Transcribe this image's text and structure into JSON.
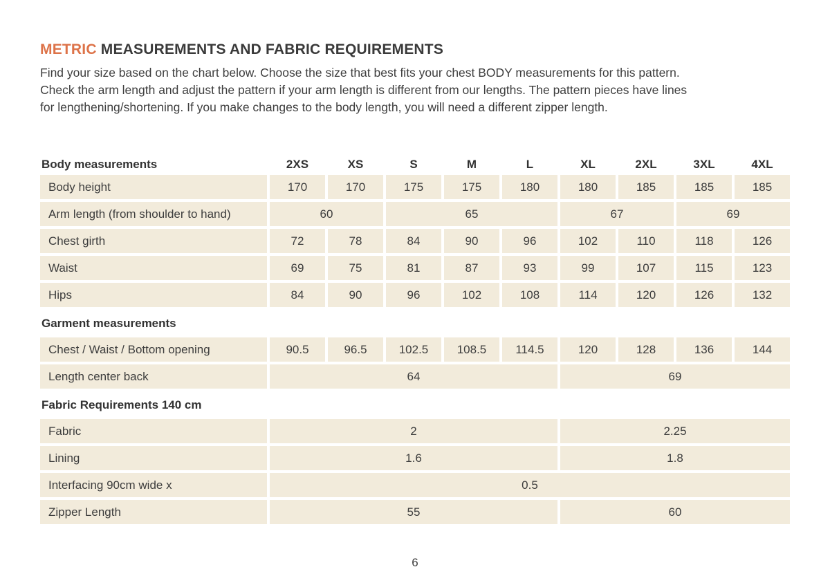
{
  "title": {
    "highlight": "METRIC",
    "rest": "MEASUREMENTS AND FABRIC REQUIREMENTS"
  },
  "intro_lines": [
    "Find your size based on the chart below. Choose the size that best fits your chest BODY measurements for this pattern.",
    "Check the arm length and adjust the pattern if your arm length is different from our lengths. The pattern pieces have lines",
    "for lengthening/shortening. If you make changes to the body length, you will need a different zipper length."
  ],
  "colors": {
    "accent_orange": "#dd7349",
    "cell_background": "#f2ebdb",
    "text": "#3d3d3d"
  },
  "table": {
    "header": {
      "label": "Body measurements",
      "sizes": [
        "2XS",
        "XS",
        "S",
        "M",
        "L",
        "XL",
        "2XL",
        "3XL",
        "4XL"
      ]
    },
    "section_headers": {
      "garment": "Garment measurements",
      "fabric_requirements": "Fabric Requirements 140 cm"
    },
    "rows": {
      "body_height": {
        "label": "Body height",
        "values": [
          "170",
          "170",
          "175",
          "175",
          "180",
          "180",
          "185",
          "185",
          "185"
        ]
      },
      "arm_length": {
        "label": "Arm length (from shoulder to hand)",
        "values": [
          "60",
          "65",
          "67",
          "69"
        ]
      },
      "chest_girth": {
        "label": "Chest girth",
        "values": [
          "72",
          "78",
          "84",
          "90",
          "96",
          "102",
          "110",
          "118",
          "126"
        ]
      },
      "waist": {
        "label": "Waist",
        "values": [
          "69",
          "75",
          "81",
          "87",
          "93",
          "99",
          "107",
          "115",
          "123"
        ]
      },
      "hips": {
        "label": "Hips",
        "values": [
          "84",
          "90",
          "96",
          "102",
          "108",
          "114",
          "120",
          "126",
          "132"
        ]
      },
      "chest_waist_bottom": {
        "label": "Chest / Waist / Bottom opening",
        "values": [
          "90.5",
          "96.5",
          "102.5",
          "108.5",
          "114.5",
          "120",
          "128",
          "136",
          "144"
        ]
      },
      "length_center_back": {
        "label": "Length center back",
        "values": [
          "64",
          "69"
        ]
      },
      "fabric": {
        "label": "Fabric",
        "values": [
          "2",
          "2.25"
        ]
      },
      "lining": {
        "label": "Lining",
        "values": [
          "1.6",
          "1.8"
        ]
      },
      "interfacing": {
        "label": "Interfacing 90cm wide x",
        "values": [
          "0.5"
        ]
      },
      "zipper_length": {
        "label": "Zipper Length",
        "values": [
          "55",
          "60"
        ]
      }
    }
  },
  "footer": {
    "page_number": "6"
  }
}
